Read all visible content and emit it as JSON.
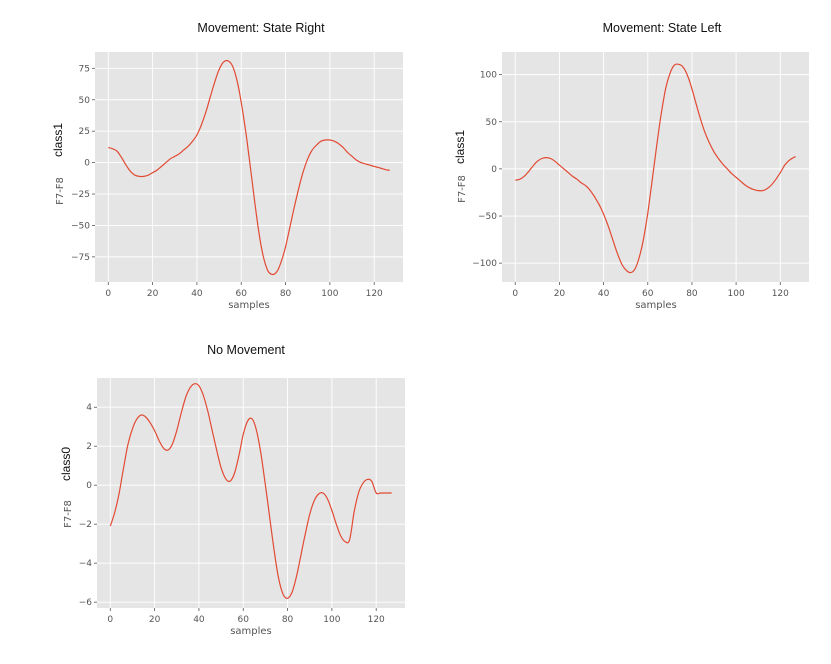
{
  "chart_data": [
    {
      "type": "line",
      "title": "Movement: State Right",
      "xlabel": "samples",
      "ylabel_main": "class1",
      "ylabel_sub": "F7-F8",
      "xlim": [
        -6,
        133
      ],
      "ylim": [
        -95,
        88
      ],
      "xticks": [
        0,
        20,
        40,
        60,
        80,
        100,
        120
      ],
      "yticks": [
        -75,
        -50,
        -25,
        0,
        25,
        50,
        75
      ],
      "grid": true,
      "line_color": "#e24a33",
      "x": [
        0,
        2,
        4,
        6,
        8,
        10,
        12,
        14,
        16,
        18,
        20,
        22,
        24,
        26,
        28,
        30,
        32,
        34,
        36,
        38,
        40,
        42,
        44,
        46,
        48,
        50,
        52,
        54,
        56,
        58,
        60,
        62,
        64,
        66,
        68,
        70,
        72,
        74,
        76,
        78,
        80,
        82,
        84,
        86,
        88,
        90,
        92,
        94,
        96,
        98,
        100,
        102,
        104,
        106,
        108,
        110,
        112,
        114,
        116,
        118,
        120,
        122,
        124,
        126,
        127
      ],
      "y": [
        12,
        11,
        9,
        4,
        -2,
        -7,
        -10,
        -11,
        -11,
        -10,
        -8,
        -6,
        -3,
        0,
        3,
        5,
        7,
        10,
        13,
        17,
        22,
        30,
        40,
        52,
        64,
        74,
        80,
        81,
        77,
        66,
        48,
        25,
        -2,
        -30,
        -56,
        -75,
        -86,
        -89,
        -87,
        -79,
        -67,
        -51,
        -35,
        -20,
        -7,
        3,
        10,
        14,
        17,
        18,
        18,
        17,
        15,
        12,
        8,
        5,
        2,
        0,
        -1,
        -2,
        -3,
        -4,
        -5,
        -6,
        -6
      ]
    },
    {
      "type": "line",
      "title": "Movement: State Left",
      "xlabel": "samples",
      "ylabel_main": "class1",
      "ylabel_sub": "F7-F8",
      "xlim": [
        -6,
        133
      ],
      "ylim": [
        -120,
        124
      ],
      "xticks": [
        0,
        20,
        40,
        60,
        80,
        100,
        120
      ],
      "yticks": [
        -100,
        -50,
        0,
        50,
        100
      ],
      "grid": true,
      "line_color": "#e24a33",
      "x": [
        0,
        2,
        4,
        6,
        8,
        10,
        12,
        14,
        16,
        18,
        20,
        22,
        24,
        26,
        28,
        30,
        32,
        34,
        36,
        38,
        40,
        42,
        44,
        46,
        48,
        50,
        52,
        54,
        56,
        58,
        60,
        62,
        64,
        66,
        68,
        70,
        72,
        74,
        76,
        78,
        80,
        82,
        84,
        86,
        88,
        90,
        92,
        94,
        96,
        98,
        100,
        102,
        104,
        106,
        108,
        110,
        112,
        114,
        116,
        118,
        120,
        122,
        124,
        126,
        127
      ],
      "y": [
        -12,
        -11,
        -8,
        -3,
        3,
        8,
        11,
        12,
        11,
        8,
        4,
        0,
        -4,
        -8,
        -11,
        -15,
        -18,
        -23,
        -30,
        -38,
        -48,
        -60,
        -74,
        -88,
        -100,
        -107,
        -110,
        -107,
        -95,
        -75,
        -47,
        -12,
        24,
        57,
        84,
        101,
        110,
        111,
        108,
        99,
        85,
        68,
        52,
        38,
        27,
        18,
        11,
        5,
        0,
        -5,
        -9,
        -13,
        -17,
        -20,
        -22,
        -23,
        -23,
        -21,
        -17,
        -11,
        -4,
        4,
        9,
        12,
        13
      ]
    },
    {
      "type": "line",
      "title": "No Movement",
      "xlabel": "samples",
      "ylabel_main": "class0",
      "ylabel_sub": "F7-F8",
      "xlim": [
        -6,
        133
      ],
      "ylim": [
        -6.3,
        5.5
      ],
      "xticks": [
        0,
        20,
        40,
        60,
        80,
        100,
        120
      ],
      "yticks": [
        -6,
        -4,
        -2,
        0,
        2,
        4
      ],
      "grid": true,
      "line_color": "#e24a33",
      "x": [
        0,
        2,
        4,
        6,
        8,
        10,
        12,
        14,
        16,
        18,
        20,
        22,
        24,
        26,
        28,
        30,
        32,
        34,
        36,
        38,
        40,
        42,
        44,
        46,
        48,
        50,
        52,
        54,
        56,
        58,
        60,
        62,
        64,
        66,
        68,
        70,
        72,
        74,
        76,
        78,
        80,
        82,
        84,
        86,
        88,
        90,
        92,
        94,
        96,
        98,
        100,
        102,
        104,
        106,
        108,
        110,
        112,
        114,
        116,
        118,
        120,
        122,
        124,
        126,
        127
      ],
      "y": [
        -2.1,
        -1.4,
        -0.4,
        0.9,
        2.1,
        2.9,
        3.4,
        3.6,
        3.5,
        3.2,
        2.8,
        2.3,
        1.9,
        1.8,
        2.1,
        2.8,
        3.7,
        4.5,
        5.0,
        5.2,
        5.1,
        4.6,
        3.8,
        2.8,
        1.8,
        0.9,
        0.35,
        0.2,
        0.6,
        1.5,
        2.6,
        3.3,
        3.4,
        2.8,
        1.6,
        0.0,
        -1.7,
        -3.4,
        -4.8,
        -5.6,
        -5.8,
        -5.5,
        -4.7,
        -3.6,
        -2.5,
        -1.5,
        -0.8,
        -0.45,
        -0.4,
        -0.7,
        -1.3,
        -2.0,
        -2.6,
        -2.9,
        -2.8,
        -1.4,
        -0.4,
        0.1,
        0.3,
        0.2,
        -0.4,
        -0.4,
        -0.4,
        -0.4,
        -0.4
      ]
    }
  ]
}
